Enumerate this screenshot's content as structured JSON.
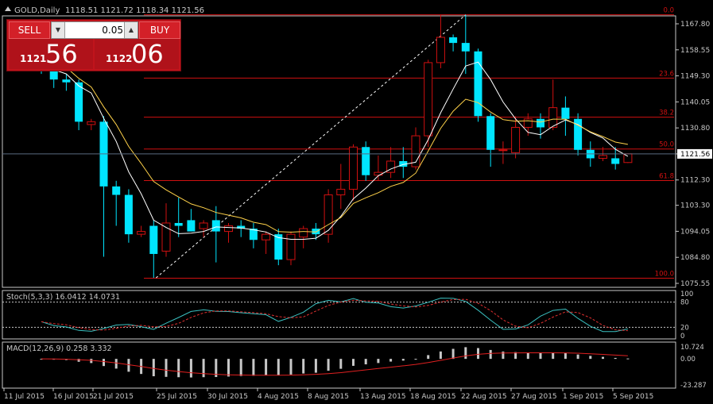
{
  "colors": {
    "bull": "#d01010",
    "bear": "#00e5ff",
    "fib": "#d01010",
    "ma_fast": "#ffffff",
    "ma_slow": "#ffd24a",
    "stoch_main": "#3ac0c0",
    "stoch_signal": "#e03030",
    "macd_hist": "#c8c8c8",
    "macd_signal": "#e02020",
    "axis": "#c8c8c8",
    "grid": "#606060"
  },
  "header": {
    "symbol": "GOLD,Daily",
    "ohlc": "1118.51 1121.72 1118.34 1121.56",
    "current_price": "1121.56"
  },
  "trade_panel": {
    "sell_label": "SELL",
    "buy_label": "BUY",
    "lot": "0.05",
    "sell_small": "1121",
    "sell_big": "56",
    "buy_small": "1122",
    "buy_big": "06"
  },
  "stoch": {
    "label": "Stoch(5,3,3) 16.0412 14.0731",
    "levels": [
      "100",
      "80",
      "20",
      "0"
    ]
  },
  "macd": {
    "label": "MACD(12,26,9) 0.258 3.332",
    "levels": [
      "10.724",
      "0.00",
      "-23.287"
    ]
  },
  "chart_data": {
    "type": "candlestick",
    "price_ticks": [
      "1167.80",
      "1158.55",
      "1149.30",
      "1140.05",
      "1130.80",
      "1121.56",
      "1112.30",
      "1103.30",
      "1094.05",
      "1084.80",
      "1075.55"
    ],
    "x_labels": [
      "11 Jul 2015",
      "16 Jul 2015",
      "21 Jul 2015",
      "25 Jul 2015",
      "30 Jul 2015",
      "4 Aug 2015",
      "8 Aug 2015",
      "13 Aug 2015",
      "18 Aug 2015",
      "22 Aug 2015",
      "27 Aug 2015",
      "1 Sep 2015",
      "5 Sep 2015"
    ],
    "fib_levels": [
      {
        "label": "0.0",
        "price": 1171.0
      },
      {
        "label": "23.6",
        "price": 1148.5
      },
      {
        "label": "38.2",
        "price": 1134.6
      },
      {
        "label": "50.0",
        "price": 1123.3
      },
      {
        "label": "61.8",
        "price": 1112.1
      },
      {
        "label": "100.0",
        "price": 1077.4
      }
    ],
    "candles": [
      [
        1163.0,
        1165.0,
        1150.0,
        1155.0
      ],
      [
        1155.0,
        1158.0,
        1145.0,
        1148.0
      ],
      [
        1148.0,
        1150.0,
        1144.0,
        1147.0
      ],
      [
        1147.0,
        1148.0,
        1130.0,
        1133.0
      ],
      [
        1132.0,
        1134.0,
        1130.0,
        1133.0
      ],
      [
        1133.0,
        1135.0,
        1085.0,
        1110.0
      ],
      [
        1110.0,
        1112.0,
        1096.0,
        1107.0
      ],
      [
        1107.0,
        1109.0,
        1090.0,
        1093.0
      ],
      [
        1093.0,
        1096.0,
        1092.0,
        1094.0
      ],
      [
        1096.0,
        1098.0,
        1077.5,
        1086.0
      ],
      [
        1087.0,
        1104.0,
        1085.0,
        1097.0
      ],
      [
        1097.0,
        1106.0,
        1092.0,
        1096.0
      ],
      [
        1098.0,
        1102.0,
        1094.0,
        1094.0
      ],
      [
        1095.0,
        1098.0,
        1092.0,
        1097.0
      ],
      [
        1098.0,
        1103.0,
        1083.0,
        1094.0
      ],
      [
        1094.0,
        1097.0,
        1090.0,
        1096.0
      ],
      [
        1096.0,
        1098.0,
        1092.0,
        1095.0
      ],
      [
        1095.0,
        1097.0,
        1088.0,
        1091.0
      ],
      [
        1091.0,
        1094.0,
        1086.0,
        1093.0
      ],
      [
        1093.0,
        1095.0,
        1082.0,
        1084.0
      ],
      [
        1084.0,
        1094.0,
        1082.0,
        1093.0
      ],
      [
        1092.0,
        1096.0,
        1088.0,
        1095.0
      ],
      [
        1095.0,
        1097.0,
        1091.0,
        1093.0
      ],
      [
        1093.0,
        1109.0,
        1090.0,
        1107.0
      ],
      [
        1107.0,
        1118.0,
        1102.0,
        1109.0
      ],
      [
        1109.0,
        1125.0,
        1105.0,
        1124.0
      ],
      [
        1124.0,
        1126.0,
        1112.0,
        1114.0
      ],
      [
        1114.0,
        1121.0,
        1112.0,
        1115.0
      ],
      [
        1115.0,
        1124.0,
        1113.0,
        1119.0
      ],
      [
        1119.0,
        1124.0,
        1113.0,
        1117.0
      ],
      [
        1117.0,
        1131.0,
        1116.0,
        1128.0
      ],
      [
        1128.0,
        1155.0,
        1124.0,
        1154.0
      ],
      [
        1154.0,
        1171.0,
        1152.0,
        1163.0
      ],
      [
        1163.0,
        1164.0,
        1158.0,
        1161.0
      ],
      [
        1161.0,
        1171.0,
        1150.0,
        1158.0
      ],
      [
        1158.0,
        1159.0,
        1133.0,
        1135.0
      ],
      [
        1135.0,
        1136.0,
        1117.0,
        1123.0
      ],
      [
        1123.0,
        1126.0,
        1118.0,
        1123.0
      ],
      [
        1122.0,
        1135.0,
        1120.0,
        1131.0
      ],
      [
        1131.0,
        1136.0,
        1128.0,
        1134.0
      ],
      [
        1134.0,
        1136.0,
        1127.0,
        1131.0
      ],
      [
        1131.0,
        1148.0,
        1130.0,
        1138.0
      ],
      [
        1138.0,
        1142.0,
        1128.0,
        1134.0
      ],
      [
        1134.0,
        1136.0,
        1121.0,
        1123.0
      ],
      [
        1123.0,
        1126.0,
        1117.0,
        1120.0
      ],
      [
        1120.0,
        1124.0,
        1119.0,
        1121.0
      ],
      [
        1120.0,
        1124.0,
        1116.0,
        1118.0
      ],
      [
        1118.5,
        1121.7,
        1118.3,
        1121.6
      ]
    ]
  }
}
